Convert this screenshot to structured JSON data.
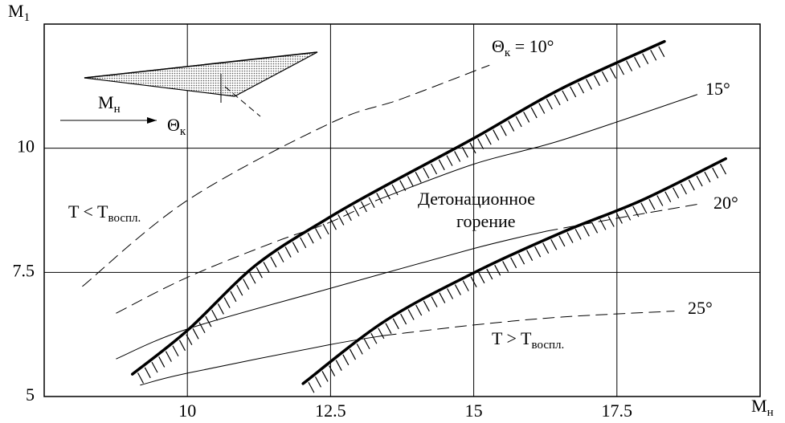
{
  "chart_data": {
    "type": "line",
    "x_label": {
      "text": "M",
      "sub": "н"
    },
    "y_label": {
      "text": "M",
      "sub": "1"
    },
    "xlim": [
      7.5,
      20
    ],
    "ylim": [
      5,
      12.5
    ],
    "xticks": [
      10,
      12.5,
      15,
      17.5
    ],
    "yticks": [
      5,
      7.5,
      10
    ],
    "grid": true,
    "series": [
      {
        "style": "thick",
        "hatch": true,
        "color": "#000000",
        "x": [
          9.04,
          10,
          11.2,
          12.47,
          13.45,
          15,
          16.53,
          18.33
        ],
        "values": [
          5.45,
          6.33,
          7.65,
          8.6,
          9.24,
          10.2,
          11.2,
          12.15
        ]
      },
      {
        "style": "thick",
        "hatch": true,
        "color": "#000000",
        "x": [
          12.02,
          13.45,
          15,
          16.53,
          17.93,
          19.4
        ],
        "values": [
          5.26,
          6.52,
          7.49,
          8.3,
          8.95,
          9.79
        ]
      },
      {
        "style": "dashed",
        "color": "#000000",
        "x": [
          8.17,
          10,
          12.47,
          13.73,
          15.27
        ],
        "values": [
          7.22,
          8.95,
          10.49,
          10.99,
          11.67
        ]
      },
      {
        "style": "dashed",
        "color": "#000000",
        "x": [
          8.76,
          10,
          11.5,
          12.47,
          13.3
        ],
        "values": [
          6.68,
          7.4,
          8.1,
          8.5,
          8.95
        ]
      },
      {
        "style": "thin",
        "color": "#000000",
        "x": [
          13.3,
          15,
          16.53,
          18.9
        ],
        "values": [
          8.95,
          9.68,
          10.16,
          11.08
        ]
      },
      {
        "style": "thin",
        "color": "#000000",
        "x": [
          8.76,
          10,
          12.47,
          15,
          16.27
        ],
        "values": [
          5.76,
          6.36,
          7.17,
          7.98,
          8.33
        ]
      },
      {
        "style": "dashed",
        "color": "#000000",
        "x": [
          16.27,
          17.65,
          18.9
        ],
        "values": [
          8.33,
          8.62,
          8.87
        ]
      },
      {
        "style": "thin",
        "color": "#000000",
        "x": [
          9.18,
          10,
          12.47,
          13.45
        ],
        "values": [
          5.23,
          5.47,
          6.04,
          6.23
        ]
      },
      {
        "style": "dashed",
        "color": "#000000",
        "x": [
          13.45,
          15,
          16.53,
          18.5
        ],
        "values": [
          6.23,
          6.44,
          6.6,
          6.72
        ]
      }
    ],
    "annotations": [
      {
        "text": "Θ",
        "sub": "к",
        "after": " = 10°"
      },
      {
        "text": "15°"
      },
      {
        "text": "20°"
      },
      {
        "text": "25°"
      },
      {
        "text": "T < T",
        "sub": "воспл."
      },
      {
        "text": "T > T",
        "sub": "воспл."
      },
      {
        "text": "Детонационное"
      },
      {
        "text": "горение"
      }
    ],
    "inset_labels": [
      {
        "text": "M",
        "sub": "н"
      },
      {
        "text": "Θ",
        "sub": "к"
      }
    ]
  }
}
